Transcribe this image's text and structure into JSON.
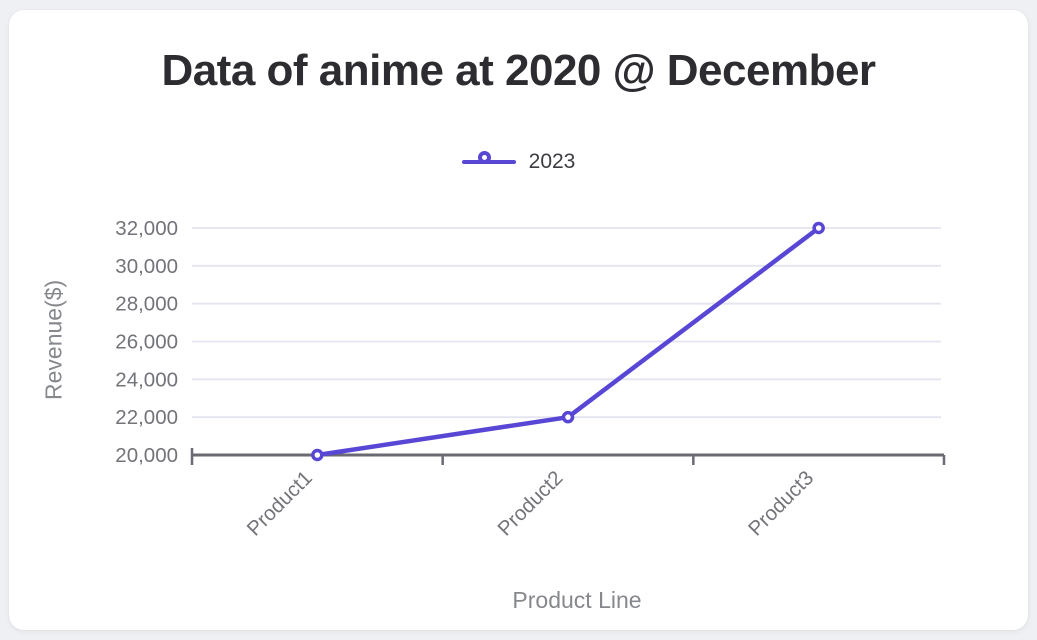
{
  "window": {
    "background_color": "#eef0f3",
    "card_color": "#ffffff"
  },
  "chart_data": {
    "type": "line",
    "title": "Data of anime at 2020 @ December",
    "xlabel": "Product Line",
    "ylabel": "Revenue($)",
    "categories": [
      "Product1",
      "Product2",
      "Product3"
    ],
    "series": [
      {
        "name": "2023",
        "values": [
          20000,
          22000,
          32000
        ],
        "color": "#5847d5",
        "marker": "circle-open"
      }
    ],
    "ylim": [
      20000,
      32000
    ],
    "yticks": [
      20000,
      22000,
      24000,
      26000,
      28000,
      30000,
      32000
    ],
    "ytick_labels": [
      "20,000",
      "22,000",
      "24,000",
      "26,000",
      "28,000",
      "30,000",
      "32,000"
    ],
    "grid": true,
    "legend_position": "top-center",
    "x_tick_rotation": -45,
    "colors": {
      "line": "#5847d5",
      "gridline": "#e4e5f0",
      "axis": "#696a72",
      "tick_label": "#73747a",
      "axis_title": "#86888d",
      "title": "#2d2d31",
      "legend_label": "#3c3d42"
    }
  }
}
